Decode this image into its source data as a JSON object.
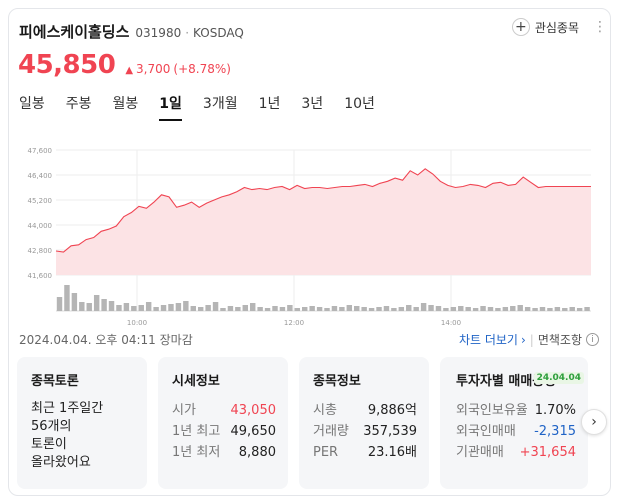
{
  "stock": {
    "name": "피에스케이홀딩스",
    "code": "031980",
    "separator": "·",
    "market": "KOSDAQ",
    "price": "45,850",
    "change_arrow": "▲",
    "change": "3,700",
    "change_pct": "(+8.78%)",
    "up_color": "#f04452"
  },
  "favorite": {
    "plus_icon": "+",
    "label": "관심종목",
    "more_icon": "⋮"
  },
  "tabs": [
    "일봉",
    "주봉",
    "월봉",
    "1일",
    "3개월",
    "1년",
    "3년",
    "10년"
  ],
  "active_tab": "1일",
  "chart_data": {
    "type": "area",
    "ylabels": [
      "47,600",
      "46,400",
      "45,200",
      "44,000",
      "42,800",
      "41,600"
    ],
    "xlabels": [
      "10:00",
      "12:00",
      "14:00"
    ],
    "ylim": [
      41600,
      47600
    ],
    "prev_close": 42150,
    "series": [
      {
        "values": [
          42750,
          42700,
          43000,
          43050,
          43300,
          43400,
          43700,
          43800,
          43950,
          44400,
          44600,
          44900,
          44800,
          45100,
          45450,
          45350,
          44850,
          44950,
          45100,
          44850,
          45050,
          45200,
          45350,
          45450,
          45600,
          45800,
          45700,
          45750,
          45700,
          45800,
          45850,
          45700,
          45900,
          45750,
          45800,
          45800,
          45750,
          45800,
          45850,
          45850,
          45900,
          45950,
          45850,
          46000,
          46100,
          46250,
          46150,
          46600,
          46400,
          46700,
          46450,
          46100,
          45900,
          45800,
          45850,
          45950,
          45900,
          45800,
          46000,
          46050,
          45900,
          45950,
          46300,
          46050,
          45800,
          45850,
          45850,
          45850,
          45850,
          45850,
          45850,
          45850
        ]
      }
    ],
    "line_color": "#f04452",
    "fill_color": "#fce3e5"
  },
  "timestamp": "2024.04.04. 오후 04:11 장마감",
  "links": {
    "chart_more": "차트 더보기",
    "arrow": "›",
    "separator": "|",
    "tax": "면책조항",
    "info_icon": "i"
  },
  "cards": {
    "discussion": {
      "title": "종목토론",
      "lines": [
        "최근 1주일간",
        "56개의",
        "토론이",
        "올라왔어요"
      ]
    },
    "quote": {
      "title": "시세정보",
      "rows": [
        {
          "label": "시가",
          "value": "43,050"
        },
        {
          "label": "1년 최고",
          "value": "49,650"
        },
        {
          "label": "1년 최저",
          "value": "8,880"
        }
      ]
    },
    "info": {
      "title": "종목정보",
      "rows": [
        {
          "label": "시총",
          "value": "9,886억"
        },
        {
          "label": "거래량",
          "value": "357,539"
        },
        {
          "label": "PER",
          "value": "23.16배"
        }
      ]
    },
    "investor": {
      "title": "투자자별 매매동향",
      "date": "24.04.04",
      "rows": [
        {
          "label": "외국인보유율",
          "value": "1.70%"
        },
        {
          "label": "외국인매매",
          "value": "-2,315"
        },
        {
          "label": "기관매매",
          "value": "+31,654"
        }
      ]
    }
  },
  "next_icon": "›"
}
